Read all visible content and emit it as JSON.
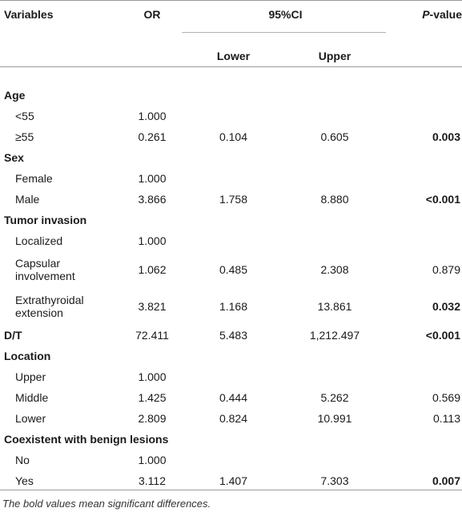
{
  "header": {
    "variables": "Variables",
    "or": "OR",
    "ci": "95%CI",
    "lower": "Lower",
    "upper": "Upper",
    "pvalue_italic": "P",
    "pvalue_rest": "-value"
  },
  "rows": [
    {
      "label": "Age",
      "group": true
    },
    {
      "label": "<55",
      "or": "1.000",
      "lower": "",
      "upper": "",
      "p": "",
      "p_bold": false
    },
    {
      "label": "≥55",
      "or": "0.261",
      "lower": "0.104",
      "upper": "0.605",
      "p": "0.003",
      "p_bold": true
    },
    {
      "label": "Sex",
      "group": true
    },
    {
      "label": "Female",
      "or": "1.000",
      "lower": "",
      "upper": "",
      "p": "",
      "p_bold": false
    },
    {
      "label": "Male",
      "or": "3.866",
      "lower": "1.758",
      "upper": "8.880",
      "p": "<0.001",
      "p_bold": true
    },
    {
      "label": "Tumor invasion",
      "group": true
    },
    {
      "label": "Localized",
      "or": "1.000",
      "lower": "",
      "upper": "",
      "p": "",
      "p_bold": false
    },
    {
      "label_line1": "Capsular",
      "label_line2": "involvement",
      "or": "1.062",
      "lower": "0.485",
      "upper": "2.308",
      "p": "0.879",
      "p_bold": false
    },
    {
      "label_line1": "Extrathyroidal",
      "label_line2": "extension",
      "or": "3.821",
      "lower": "1.168",
      "upper": "13.861",
      "p": "0.032",
      "p_bold": true
    },
    {
      "label": "D/T",
      "or": "72.411",
      "lower": "5.483",
      "upper": "1,212.497",
      "p": "<0.001",
      "p_bold": true,
      "group_value": true
    },
    {
      "label": "Location",
      "group": true
    },
    {
      "label": "Upper",
      "or": "1.000",
      "lower": "",
      "upper": "",
      "p": "",
      "p_bold": false
    },
    {
      "label": "Middle",
      "or": "1.425",
      "lower": "0.444",
      "upper": "5.262",
      "p": "0.569",
      "p_bold": false
    },
    {
      "label": "Lower",
      "or": "2.809",
      "lower": "0.824",
      "upper": "10.991",
      "p": "0.113",
      "p_bold": false
    },
    {
      "label": "Coexistent with benign lesions",
      "group": true
    },
    {
      "label": "No",
      "or": "1.000",
      "lower": "",
      "upper": "",
      "p": "",
      "p_bold": false
    },
    {
      "label": "Yes",
      "or": "3.112",
      "lower": "1.407",
      "upper": "7.303",
      "p": "0.007",
      "p_bold": true
    }
  ],
  "footnote": "The bold values mean significant differences."
}
